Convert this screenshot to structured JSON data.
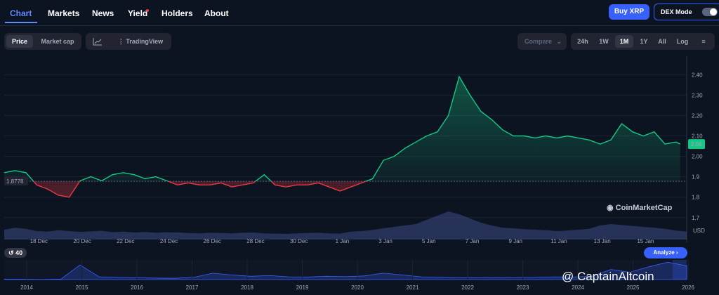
{
  "nav": {
    "tabs": [
      "Chart",
      "Markets",
      "News",
      "Yield",
      "Holders",
      "About"
    ],
    "buy_label": "Buy XRP",
    "dex_label": "DEX Mode"
  },
  "toolbar": {
    "metric_tabs": [
      "Price",
      "Market cap"
    ],
    "chart_tools": [
      "TradingView"
    ],
    "compare_label": "Compare",
    "ranges": [
      "24h",
      "1W",
      "1M",
      "1Y",
      "All",
      "Log"
    ],
    "active_range": "1M"
  },
  "chart_data": {
    "type": "line",
    "x_ticks": [
      "18 Dec",
      "20 Dec",
      "22 Dec",
      "24 Dec",
      "26 Dec",
      "28 Dec",
      "30 Dec",
      "1 Jan",
      "3 Jan",
      "5 Jan",
      "7 Jan",
      "9 Jan",
      "11 Jan",
      "13 Jan",
      "15 Jan"
    ],
    "y_ticks": [
      1.7,
      1.8,
      1.9,
      2.0,
      2.1,
      2.2,
      2.3,
      2.4
    ],
    "y_tick_labels": [
      "1.7",
      "1.8",
      "1.9",
      "2.00",
      "2.10",
      "2.20",
      "2.30",
      "2.40"
    ],
    "ylim": [
      1.62,
      2.47
    ],
    "unit_label": "USD",
    "baseline": 1.8778,
    "baseline_label": "1.8778",
    "current_value": 2.06,
    "current_label": "2.06",
    "series": [
      {
        "x": [
          0,
          0.5,
          1,
          1.5,
          2,
          2.5,
          3,
          3.5,
          4,
          4.5,
          5,
          5.5,
          6,
          6.5,
          7,
          7.5,
          8,
          8.5,
          9,
          9.5,
          10,
          10.5,
          11,
          11.5,
          12,
          12.5,
          13,
          13.5,
          14,
          14.5,
          15,
          15.5,
          16,
          16.5,
          17,
          17.5,
          18,
          18.5,
          19,
          19.5,
          20,
          20.5,
          21,
          21.5,
          22,
          22.5,
          23,
          23.5,
          24,
          24.5,
          25,
          25.5,
          26,
          26.5,
          27,
          27.5,
          28,
          28.5,
          29,
          29.5,
          30,
          30.5,
          31,
          31.2
        ],
        "values": [
          1.92,
          1.93,
          1.92,
          1.86,
          1.84,
          1.81,
          1.8,
          1.88,
          1.9,
          1.88,
          1.91,
          1.92,
          1.91,
          1.89,
          1.9,
          1.88,
          1.86,
          1.87,
          1.86,
          1.86,
          1.87,
          1.85,
          1.86,
          1.87,
          1.91,
          1.86,
          1.85,
          1.86,
          1.86,
          1.87,
          1.85,
          1.83,
          1.85,
          1.87,
          1.89,
          1.98,
          2.0,
          2.04,
          2.07,
          2.1,
          2.12,
          2.2,
          2.39,
          2.3,
          2.22,
          2.18,
          2.13,
          2.1,
          2.1,
          2.09,
          2.1,
          2.09,
          2.1,
          2.09,
          2.08,
          2.06,
          2.08,
          2.16,
          2.12,
          2.1,
          2.12,
          2.06,
          2.07,
          2.06
        ]
      }
    ],
    "volume": [
      0.35,
      0.42,
      0.38,
      0.3,
      0.28,
      0.33,
      0.3,
      0.27,
      0.29,
      0.31,
      0.26,
      0.28,
      0.25,
      0.27,
      0.24,
      0.26,
      0.25,
      0.23,
      0.22,
      0.24,
      0.23,
      0.22,
      0.24,
      0.25,
      0.22,
      0.21,
      0.2,
      0.22,
      0.23,
      0.24,
      0.22,
      0.21,
      0.28,
      0.3,
      0.34,
      0.4,
      0.45,
      0.5,
      0.55,
      0.7,
      0.85,
      1.0,
      0.9,
      0.75,
      0.6,
      0.5,
      0.42,
      0.4,
      0.37,
      0.35,
      0.33,
      0.3,
      0.32,
      0.35,
      0.38,
      0.5,
      0.55,
      0.52,
      0.48,
      0.45,
      0.42,
      0.38,
      0.32,
      0.28
    ],
    "navigator": {
      "years": [
        "2014",
        "2015",
        "2016",
        "2017",
        "2018",
        "2019",
        "2020",
        "2021",
        "2022",
        "2023",
        "2024",
        "2025",
        "2026"
      ],
      "values": [
        0.02,
        0.02,
        0.01,
        0.03,
        0.8,
        0.15,
        0.12,
        0.1,
        0.08,
        0.07,
        0.12,
        0.35,
        0.25,
        0.18,
        0.22,
        0.15,
        0.14,
        0.18,
        0.16,
        0.2,
        0.35,
        0.25,
        0.15,
        0.12,
        0.1,
        0.1,
        0.11,
        0.1,
        0.12,
        0.15,
        0.14,
        0.18,
        0.55,
        0.4,
        0.7,
        0.95,
        0.75
      ]
    }
  },
  "footer": {
    "pill_label": "40",
    "analyze_label": "Analyze",
    "watermark": "CoinMarketCap",
    "credit": "@ CaptainAltcoin"
  },
  "colors": {
    "up": "#16c784",
    "down": "#ea3943",
    "accent": "#3861fb",
    "bg": "#0d1421"
  }
}
